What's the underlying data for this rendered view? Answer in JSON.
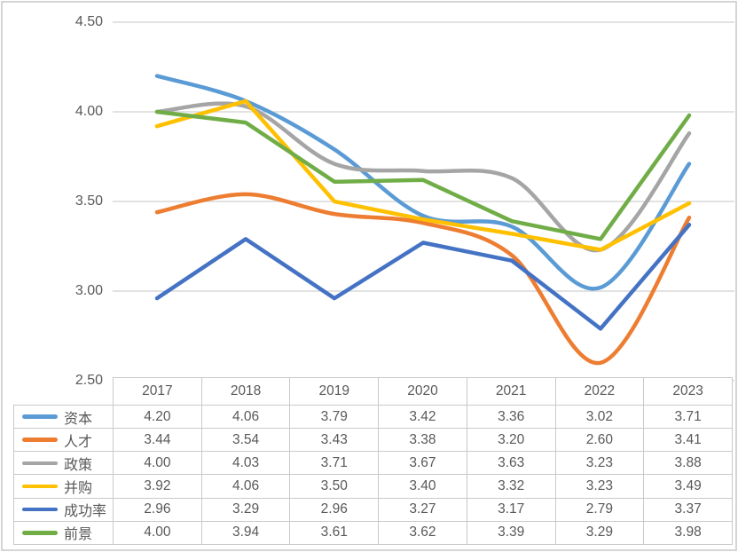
{
  "chart_data": {
    "type": "line",
    "title": "",
    "xlabel": "",
    "ylabel": "",
    "x": [
      "2017",
      "2018",
      "2019",
      "2020",
      "2021",
      "2022",
      "2023"
    ],
    "series": [
      {
        "id": "capital",
        "name": "资本",
        "color": "#5B9BD5",
        "smooth": true,
        "values": [
          4.2,
          4.06,
          3.79,
          3.42,
          3.36,
          3.02,
          3.71
        ]
      },
      {
        "id": "talent",
        "name": "人才",
        "color": "#ED7D31",
        "smooth": true,
        "values": [
          3.44,
          3.54,
          3.43,
          3.38,
          3.2,
          2.6,
          3.41
        ]
      },
      {
        "id": "policy",
        "name": "政策",
        "color": "#A5A5A5",
        "smooth": true,
        "values": [
          4.0,
          4.03,
          3.71,
          3.67,
          3.63,
          3.23,
          3.88
        ]
      },
      {
        "id": "mergers",
        "name": "并购",
        "color": "#FFC000",
        "smooth": false,
        "values": [
          3.92,
          4.06,
          3.5,
          3.4,
          3.32,
          3.23,
          3.49
        ]
      },
      {
        "id": "success-rate",
        "name": "成功率",
        "color": "#4472C4",
        "smooth": false,
        "values": [
          2.96,
          3.29,
          2.96,
          3.27,
          3.17,
          2.79,
          3.37
        ]
      },
      {
        "id": "prospect",
        "name": "前景",
        "color": "#70AD47",
        "smooth": false,
        "values": [
          4.0,
          3.94,
          3.61,
          3.62,
          3.39,
          3.29,
          3.98
        ]
      }
    ],
    "y_axis": {
      "ticks": [
        "4.50",
        "4.00",
        "3.50",
        "3.00",
        "2.50"
      ],
      "min": 2.5,
      "max": 4.5
    },
    "ylim": [
      2.5,
      4.5
    ],
    "grid": true,
    "legend_position": "table-left-column",
    "value_format": "0.00"
  },
  "theme": {
    "text_color": "#595959",
    "grid_color": "#d9d9d9",
    "table_border_color": "#c9c9c9",
    "frame_color": "#d5d5d5",
    "background": "#ffffff"
  }
}
